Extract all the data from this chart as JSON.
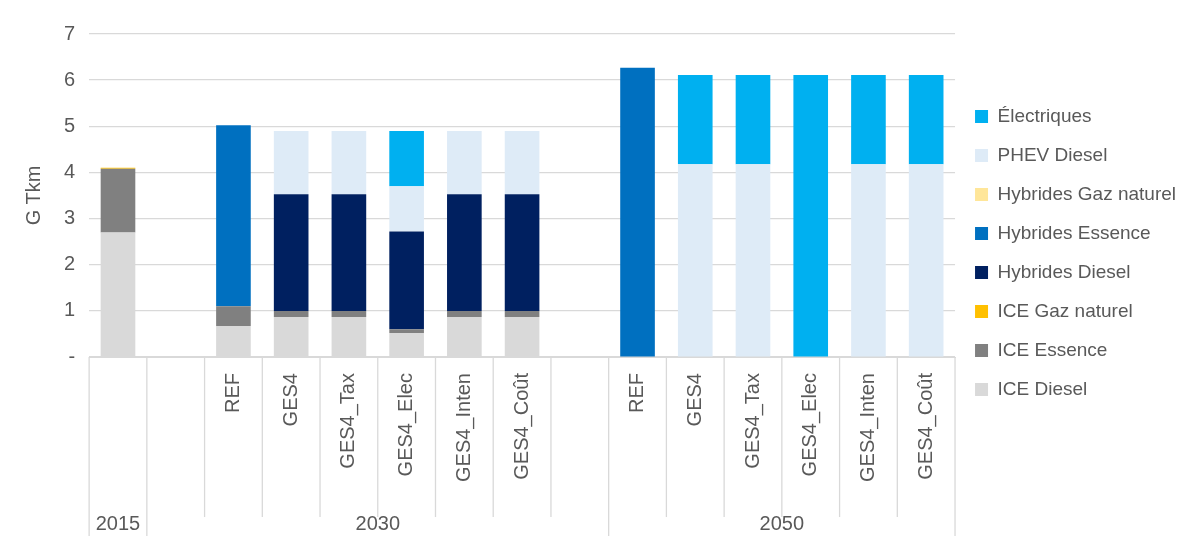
{
  "chart_data": {
    "type": "bar",
    "stacked": true,
    "ylabel": "G Tkm",
    "categories": [
      null,
      null,
      "REF",
      "GES4",
      "GES4_Tax",
      "GES4_Elec",
      "GES4_Inten",
      "GES4_Coût",
      null,
      "REF",
      "GES4",
      "GES4_Tax",
      "GES4_Elec",
      "GES4_Inten",
      "GES4_Coût"
    ],
    "series": [
      {
        "name": "ICE Diesel",
        "color": "#d9d9d9",
        "values": [
          2.7,
          null,
          0.67,
          0.87,
          0.87,
          0.52,
          0.87,
          0.87,
          null,
          null,
          null,
          null,
          null,
          null,
          null
        ]
      },
      {
        "name": "ICE Essence",
        "color": "#808080",
        "values": [
          1.38,
          null,
          0.43,
          0.13,
          0.13,
          0.08,
          0.13,
          0.13,
          null,
          null,
          null,
          null,
          null,
          null,
          null
        ]
      },
      {
        "name": "ICE Gaz naturel",
        "color": "#ffc000",
        "values": [
          0.02,
          null,
          null,
          null,
          null,
          null,
          null,
          null,
          null,
          null,
          null,
          null,
          null,
          null,
          null
        ]
      },
      {
        "name": "Hybrides Diesel",
        "color": "#002060",
        "values": [
          null,
          null,
          null,
          2.53,
          2.53,
          2.12,
          2.53,
          2.53,
          null,
          null,
          null,
          null,
          null,
          null,
          null
        ]
      },
      {
        "name": "Hybrides Essence",
        "color": "#0070c0",
        "values": [
          null,
          null,
          3.92,
          null,
          null,
          null,
          null,
          null,
          null,
          6.27,
          null,
          null,
          null,
          null,
          null
        ]
      },
      {
        "name": "Hybrides Gaz naturel",
        "color": "#ffe699",
        "values": [
          null,
          null,
          null,
          null,
          null,
          null,
          null,
          null,
          null,
          null,
          null,
          null,
          null,
          null,
          null
        ]
      },
      {
        "name": "PHEV Diesel",
        "color": "#deebf7",
        "values": [
          null,
          null,
          null,
          1.37,
          1.37,
          0.98,
          1.37,
          1.37,
          null,
          null,
          4.18,
          4.18,
          null,
          4.18,
          4.18
        ]
      },
      {
        "name": "Électriques",
        "color": "#00b0f0",
        "values": [
          null,
          null,
          null,
          null,
          null,
          1.2,
          null,
          null,
          null,
          null,
          1.93,
          1.93,
          6.11,
          1.93,
          1.93
        ]
      }
    ],
    "annotations": [
      "2015",
      "2030",
      "2050"
    ],
    "ylim": [
      0,
      7
    ],
    "yticks": [
      {
        "value": 0,
        "label": "-"
      },
      1,
      2,
      3,
      4,
      5,
      6,
      7
    ],
    "grid": "y",
    "legend": "right"
  }
}
